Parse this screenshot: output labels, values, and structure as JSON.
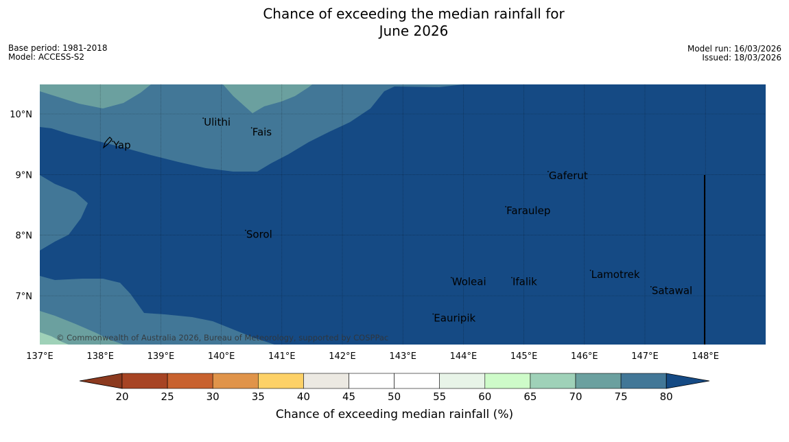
{
  "title": {
    "line1": "Chance of exceeding the median rainfall for",
    "line2": "June 2026"
  },
  "meta_left": {
    "base_period": "Base period: 1981-2018",
    "model": "Model: ACCESS-S2"
  },
  "meta_right": {
    "model_run": "Model run: 16/03/2026",
    "issued": "Issued: 18/03/2026"
  },
  "map": {
    "lon_range": [
      137,
      149
    ],
    "lat_range": [
      6.2,
      10.5
    ],
    "lon_ticks": [
      "137°E",
      "138°E",
      "139°E",
      "140°E",
      "141°E",
      "142°E",
      "143°E",
      "144°E",
      "145°E",
      "146°E",
      "147°E",
      "148°E"
    ],
    "lat_ticks": [
      "10°N",
      "9°N",
      "8°N",
      "7°N"
    ],
    "copyright": "© Commonwealth of Australia 2026, Bureau of Meteorology, supported by COSPPac",
    "places": [
      {
        "name": "Yap",
        "lon": 138.2,
        "lat": 9.55
      },
      {
        "name": "Ulithi",
        "lon": 139.7,
        "lat": 9.93
      },
      {
        "name": "Fais",
        "lon": 140.5,
        "lat": 9.77
      },
      {
        "name": "Gaferut",
        "lon": 145.4,
        "lat": 9.05
      },
      {
        "name": "Faraulep",
        "lon": 144.7,
        "lat": 8.47
      },
      {
        "name": "Sorol",
        "lon": 140.4,
        "lat": 8.08
      },
      {
        "name": "Lamotrek",
        "lon": 146.1,
        "lat": 7.42
      },
      {
        "name": "Woleai",
        "lon": 143.8,
        "lat": 7.3
      },
      {
        "name": "Ifalik",
        "lon": 144.8,
        "lat": 7.3
      },
      {
        "name": "Satawal",
        "lon": 147.1,
        "lat": 7.15
      },
      {
        "name": "Eauripik",
        "lon": 143.5,
        "lat": 6.7
      }
    ],
    "colors": {
      "above_80": "#154a84",
      "75_80": "#427797",
      "70_75": "#6ba09f",
      "65_70": "#9fd1b8"
    }
  },
  "colorbar": {
    "label": "Chance of exceeding median rainfall (%)",
    "ticks": [
      "20",
      "25",
      "30",
      "35",
      "40",
      "45",
      "50",
      "55",
      "60",
      "65",
      "70",
      "75",
      "80"
    ],
    "colors": [
      "#a74424",
      "#c8622f",
      "#e0944a",
      "#fdd167",
      "#ece9e2",
      "#ffffff",
      "#ffffff",
      "#e8f4e8",
      "#cefbc9",
      "#9fd1b8",
      "#6ba09f",
      "#427797"
    ],
    "under_color": "#8c3a1f",
    "over_color": "#154a84"
  }
}
